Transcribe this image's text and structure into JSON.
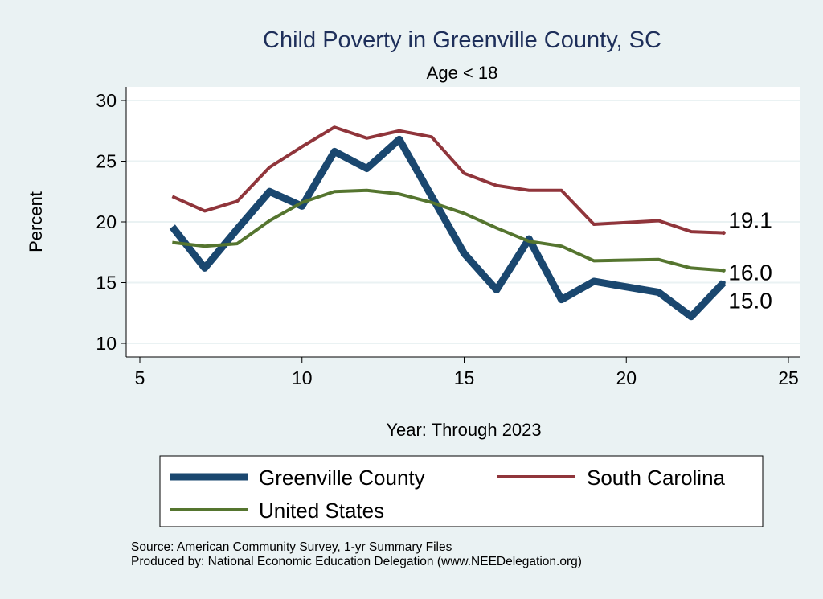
{
  "chart_data": {
    "type": "line",
    "title": "Child Poverty in Greenville County, SC",
    "subtitle": "Age < 18",
    "xlabel": "Year: Through 2023",
    "ylabel": "Percent",
    "xlim": [
      5,
      25
    ],
    "ylim": [
      10,
      30
    ],
    "xticks": [
      5,
      10,
      15,
      20,
      25
    ],
    "yticks": [
      10,
      15,
      20,
      25,
      30
    ],
    "grid": true,
    "legend_position": "bottom",
    "series": [
      {
        "name": "Greenville County",
        "color": "#1a476f",
        "width": 9,
        "x": [
          6,
          7,
          8,
          9,
          10,
          11,
          12,
          13,
          14,
          15,
          16,
          17,
          18,
          19,
          21,
          22,
          23
        ],
        "y": [
          19.6,
          16.2,
          19.4,
          22.5,
          21.3,
          25.8,
          24.4,
          26.8,
          22.1,
          17.4,
          14.4,
          18.6,
          13.6,
          15.1,
          14.2,
          12.2,
          15.0
        ],
        "end_label": "15.0"
      },
      {
        "name": "South Carolina",
        "color": "#90353b",
        "width": 4,
        "x": [
          6,
          7,
          8,
          9,
          10,
          11,
          12,
          13,
          14,
          15,
          16,
          17,
          18,
          19,
          21,
          22,
          23
        ],
        "y": [
          22.1,
          20.9,
          21.7,
          24.5,
          26.2,
          27.8,
          26.9,
          27.5,
          27.0,
          24.0,
          23.0,
          22.6,
          22.6,
          19.8,
          20.1,
          19.2,
          19.1
        ],
        "end_label": "19.1"
      },
      {
        "name": "United States",
        "color": "#55752f",
        "width": 4,
        "x": [
          6,
          7,
          8,
          9,
          10,
          11,
          12,
          13,
          14,
          15,
          16,
          17,
          18,
          19,
          21,
          22,
          23
        ],
        "y": [
          18.3,
          18.0,
          18.2,
          20.1,
          21.6,
          22.5,
          22.6,
          22.3,
          21.6,
          20.7,
          19.5,
          18.4,
          18.0,
          16.8,
          16.9,
          16.2,
          16.0
        ],
        "end_label": "16.0"
      }
    ]
  },
  "footer": {
    "source": "Source: American Community Survey, 1-yr Summary Files",
    "produced": "Produced by: National Economic Education Delegation (www.NEEDelegation.org)"
  }
}
